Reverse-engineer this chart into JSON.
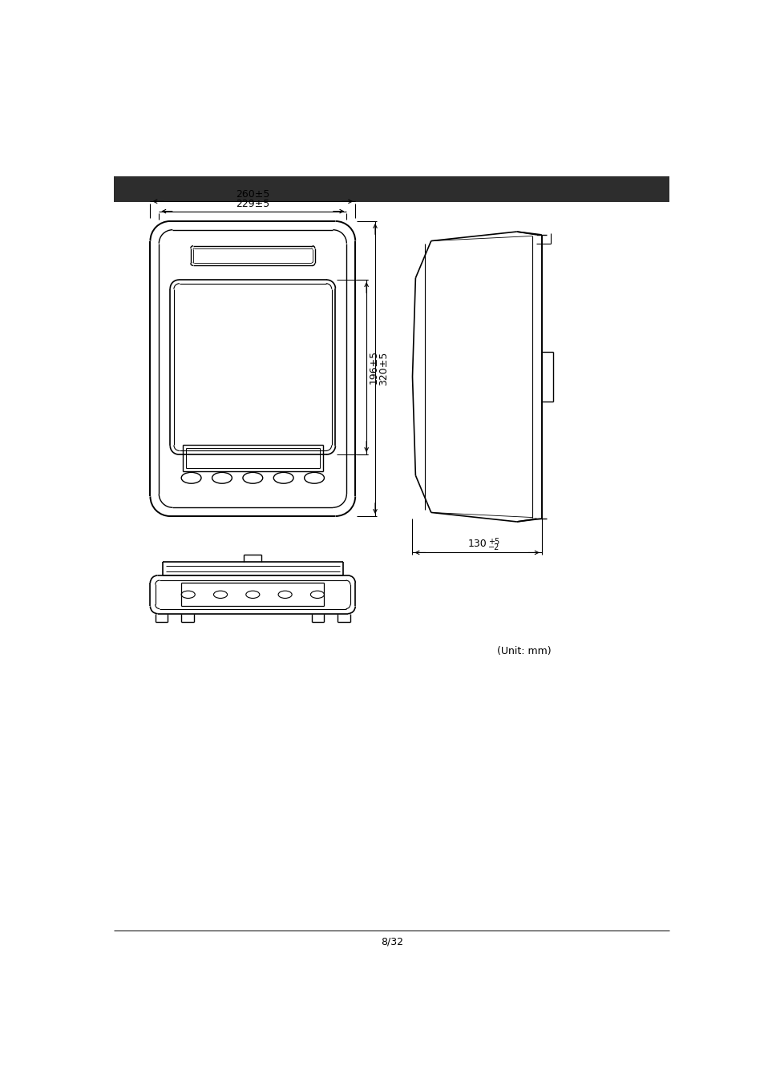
{
  "page_bg": "#ffffff",
  "header_bar_color": "#2d2d2d",
  "footer_text": "8/32",
  "unit_text": "(Unit: mm)",
  "dim_260": "260±5",
  "dim_229": "229±5",
  "dim_196": "196±5",
  "dim_320": "320±5",
  "line_color": "#000000",
  "text_color": "#000000"
}
